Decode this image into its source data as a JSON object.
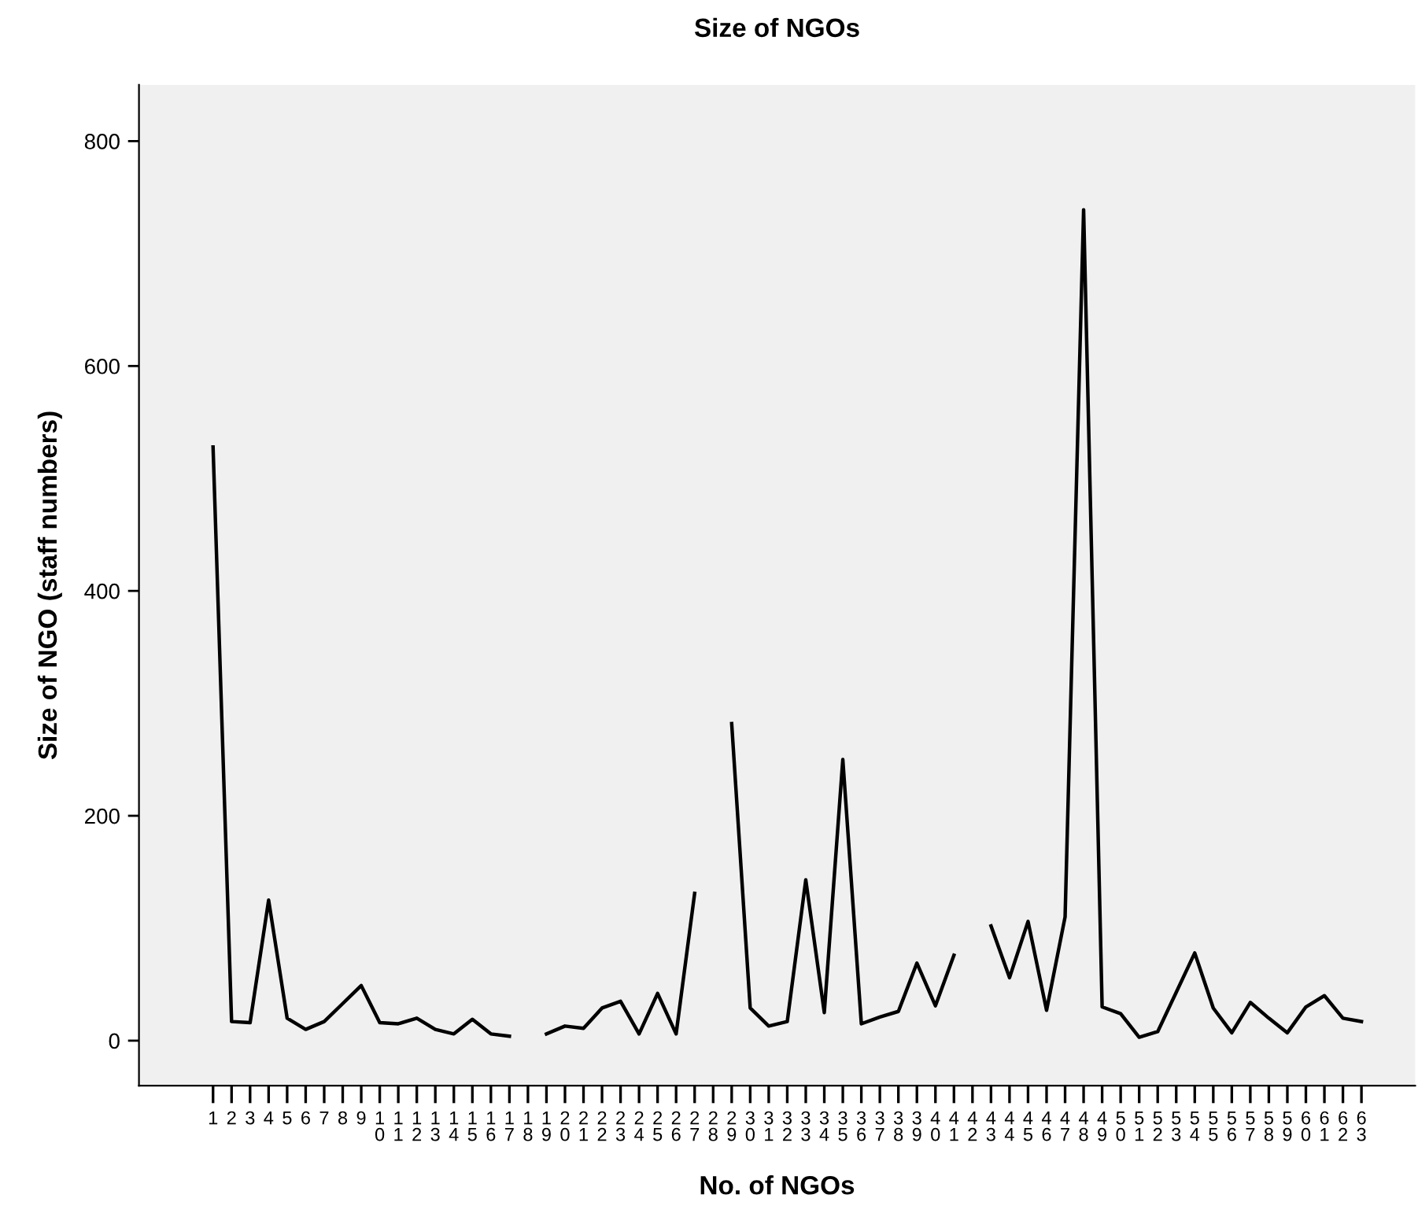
{
  "chart_data": {
    "type": "line",
    "title": "Size of NGOs",
    "xlabel": "No. of NGOs",
    "ylabel": "Size of NGO (staff numbers)",
    "categories": [
      "1",
      "2",
      "3",
      "4",
      "5",
      "6",
      "7",
      "8",
      "9",
      "10",
      "11",
      "12",
      "13",
      "14",
      "15",
      "16",
      "17",
      "18",
      "19",
      "20",
      "21",
      "22",
      "23",
      "24",
      "25",
      "26",
      "27",
      "28",
      "29",
      "30",
      "31",
      "32",
      "33",
      "34",
      "35",
      "36",
      "37",
      "38",
      "39",
      "40",
      "41",
      "42",
      "43",
      "44",
      "45",
      "46",
      "47",
      "48",
      "49",
      "50",
      "51",
      "52",
      "53",
      "54",
      "55",
      "56",
      "57",
      "58",
      "59",
      "60",
      "61",
      "62",
      "63"
    ],
    "series": [
      {
        "color": "#000000",
        "values": [
          528,
          17,
          16,
          125,
          20,
          10,
          17,
          33,
          49,
          16,
          15,
          20,
          10,
          6,
          19,
          6,
          4,
          null,
          6,
          13,
          11,
          29,
          35,
          6,
          42,
          6,
          131,
          null,
          282,
          29,
          13,
          17,
          143,
          25,
          250,
          15,
          21,
          26,
          69,
          31,
          76,
          null,
          102,
          56,
          106,
          27,
          110,
          739,
          30,
          24,
          3,
          8,
          43,
          78,
          29,
          7,
          34,
          20,
          7,
          30,
          40,
          20,
          17
        ]
      }
    ],
    "ylim": [
      -40,
      850
    ],
    "yticks": [
      0,
      200,
      400,
      600,
      800
    ],
    "grid": false,
    "legend": false,
    "marker": "none",
    "line_style": "solid"
  }
}
